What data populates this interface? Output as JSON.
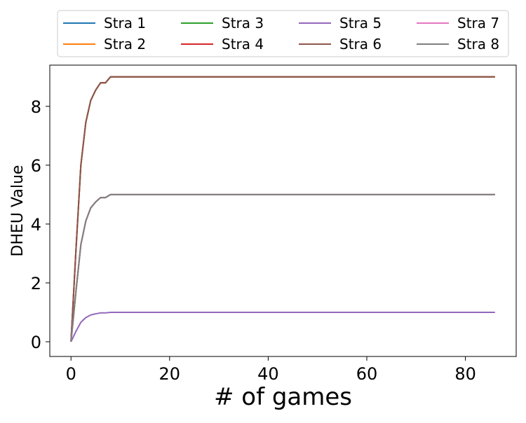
{
  "chart_data": {
    "type": "line",
    "title": "",
    "xlabel": "# of games",
    "ylabel": "DHEU Value",
    "xlim": [
      -4.3,
      90.3
    ],
    "ylim": [
      -0.5,
      9.4
    ],
    "xticks": [
      0,
      20,
      40,
      60,
      80
    ],
    "yticks": [
      0,
      2,
      4,
      6,
      8
    ],
    "grid": false,
    "legend_position": "top, above plot, 4 columns",
    "series": [
      {
        "name": "Stra 1",
        "color": "#1f77b4",
        "x": [
          0,
          1,
          2,
          3,
          4,
          5,
          6,
          7,
          8,
          86
        ],
        "y": [
          0,
          1.7,
          3.3,
          4.1,
          4.55,
          4.75,
          4.9,
          4.9,
          5.0,
          5.0
        ]
      },
      {
        "name": "Stra 2",
        "color": "#ff7f0e",
        "x": [
          0,
          1,
          2,
          3,
          4,
          5,
          6,
          7,
          8,
          86
        ],
        "y": [
          0,
          1.7,
          3.3,
          4.1,
          4.55,
          4.75,
          4.9,
          4.9,
          5.0,
          5.0
        ]
      },
      {
        "name": "Stra 3",
        "color": "#2ca02c",
        "x": [
          0,
          1,
          2,
          3,
          4,
          5,
          6,
          7,
          8,
          86
        ],
        "y": [
          0,
          3.1,
          6.0,
          7.45,
          8.2,
          8.55,
          8.8,
          8.8,
          9.0,
          9.0
        ]
      },
      {
        "name": "Stra 4",
        "color": "#d62728",
        "x": [
          0,
          1,
          2,
          3,
          4,
          5,
          6,
          7,
          8,
          86
        ],
        "y": [
          0,
          3.1,
          6.0,
          7.45,
          8.2,
          8.55,
          8.8,
          8.8,
          9.0,
          9.0
        ]
      },
      {
        "name": "Stra 5",
        "color": "#9467bd",
        "x": [
          0,
          1,
          2,
          3,
          4,
          5,
          6,
          7,
          8,
          86
        ],
        "y": [
          0,
          0.35,
          0.66,
          0.82,
          0.91,
          0.95,
          0.98,
          0.98,
          1.0,
          1.0
        ]
      },
      {
        "name": "Stra 6",
        "color": "#8c564b",
        "x": [
          0,
          1,
          2,
          3,
          4,
          5,
          6,
          7,
          8,
          86
        ],
        "y": [
          0,
          3.1,
          6.0,
          7.45,
          8.2,
          8.55,
          8.8,
          8.8,
          9.0,
          9.0
        ]
      },
      {
        "name": "Stra 7",
        "color": "#e377c2",
        "x": [
          0,
          1,
          2,
          3,
          4,
          5,
          6,
          7,
          8,
          86
        ],
        "y": [
          0,
          1.7,
          3.3,
          4.1,
          4.55,
          4.75,
          4.9,
          4.9,
          5.0,
          5.0
        ]
      },
      {
        "name": "Stra 8",
        "color": "#7f7f7f",
        "x": [
          0,
          1,
          2,
          3,
          4,
          5,
          6,
          7,
          8,
          86
        ],
        "y": [
          0,
          1.7,
          3.3,
          4.1,
          4.55,
          4.75,
          4.9,
          4.9,
          5.0,
          5.0
        ]
      }
    ]
  }
}
